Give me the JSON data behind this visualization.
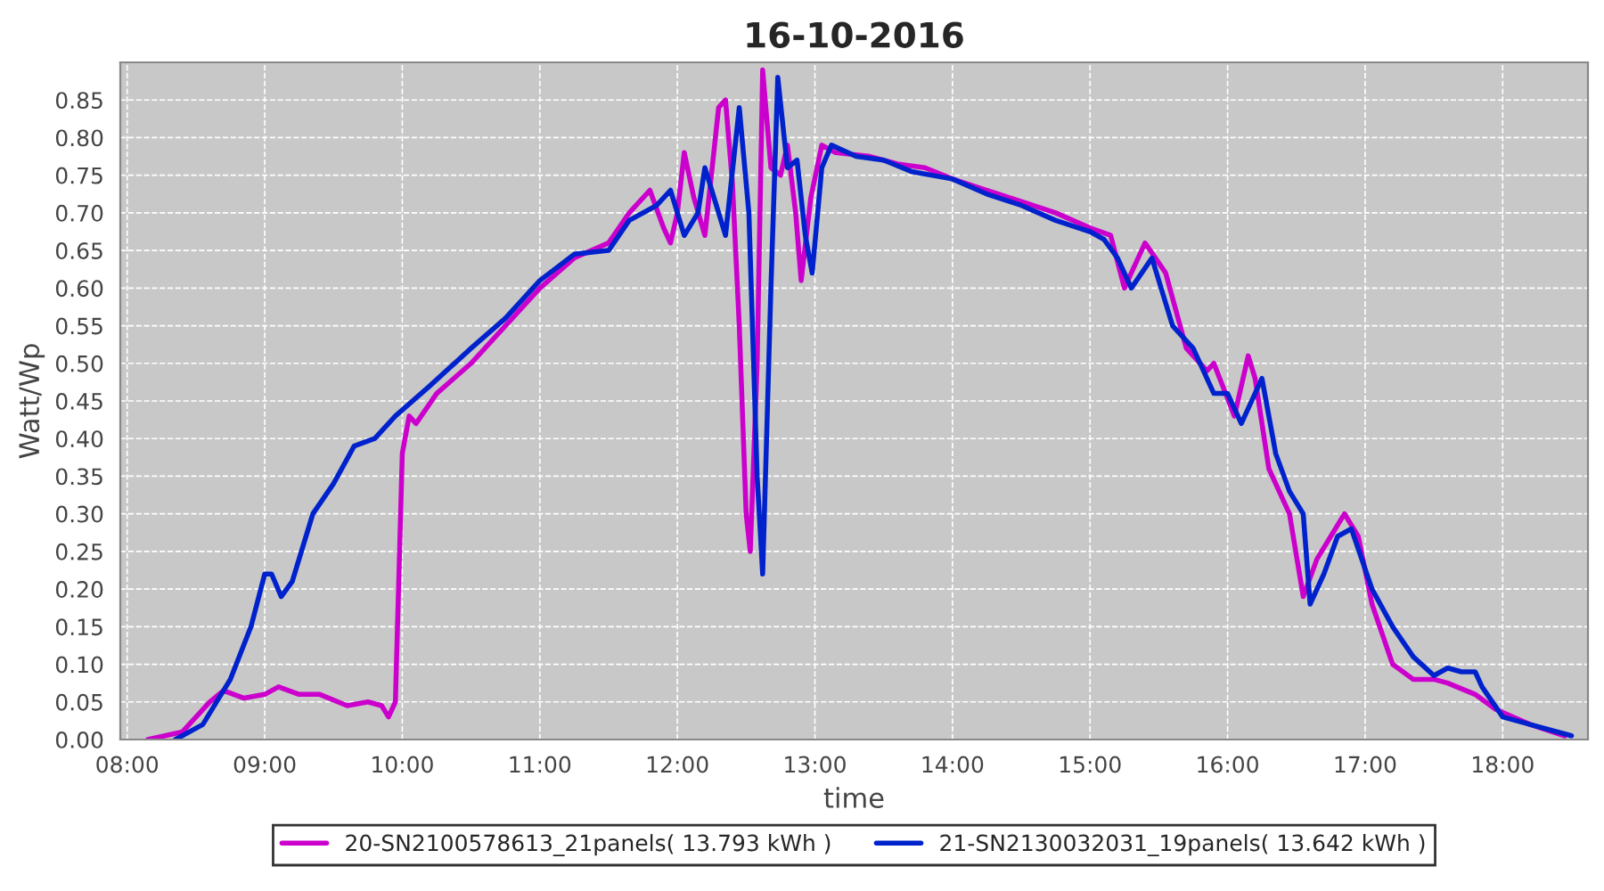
{
  "chart_data": {
    "type": "line",
    "title": "16-10-2016",
    "xlabel": "time",
    "ylabel": "Watt/Wp",
    "xlim": [
      7.95,
      18.62
    ],
    "xticks": [
      {
        "value": 8,
        "label": "08:00"
      },
      {
        "value": 9,
        "label": "09:00"
      },
      {
        "value": 10,
        "label": "10:00"
      },
      {
        "value": 11,
        "label": "11:00"
      },
      {
        "value": 12,
        "label": "12:00"
      },
      {
        "value": 13,
        "label": "13:00"
      },
      {
        "value": 14,
        "label": "14:00"
      },
      {
        "value": 15,
        "label": "15:00"
      },
      {
        "value": 16,
        "label": "16:00"
      },
      {
        "value": 17,
        "label": "17:00"
      },
      {
        "value": 18,
        "label": "18:00"
      }
    ],
    "ylim": [
      0,
      0.9
    ],
    "yticks": [
      {
        "value": 0,
        "label": "0.00"
      },
      {
        "value": 0.05,
        "label": "0.05"
      },
      {
        "value": 0.1,
        "label": "0.10"
      },
      {
        "value": 0.15,
        "label": "0.15"
      },
      {
        "value": 0.2,
        "label": "0.20"
      },
      {
        "value": 0.25,
        "label": "0.25"
      },
      {
        "value": 0.3,
        "label": "0.30"
      },
      {
        "value": 0.35,
        "label": "0.35"
      },
      {
        "value": 0.4,
        "label": "0.40"
      },
      {
        "value": 0.45,
        "label": "0.45"
      },
      {
        "value": 0.5,
        "label": "0.50"
      },
      {
        "value": 0.55,
        "label": "0.55"
      },
      {
        "value": 0.6,
        "label": "0.60"
      },
      {
        "value": 0.65,
        "label": "0.65"
      },
      {
        "value": 0.7,
        "label": "0.70"
      },
      {
        "value": 0.75,
        "label": "0.75"
      },
      {
        "value": 0.8,
        "label": "0.80"
      },
      {
        "value": 0.85,
        "label": "0.85"
      }
    ],
    "grid": true,
    "legend": "bottom",
    "marker": "none",
    "line_style": "solid",
    "series": [
      {
        "name": "20-SN2100578613_21panels( 13.793 kWh )",
        "color": "#cc00cc",
        "x": [
          8.15,
          8.4,
          8.6,
          8.7,
          8.85,
          9.0,
          9.1,
          9.25,
          9.4,
          9.6,
          9.75,
          9.85,
          9.9,
          9.95,
          10.0,
          10.05,
          10.1,
          10.25,
          10.5,
          10.75,
          11.0,
          11.25,
          11.5,
          11.65,
          11.8,
          11.9,
          11.95,
          12.0,
          12.05,
          12.12,
          12.2,
          12.3,
          12.35,
          12.4,
          12.45,
          12.5,
          12.53,
          12.58,
          12.62,
          12.68,
          12.75,
          12.8,
          12.86,
          12.9,
          12.97,
          13.05,
          13.15,
          13.4,
          13.6,
          13.8,
          14.0,
          14.25,
          14.5,
          14.75,
          15.0,
          15.15,
          15.25,
          15.4,
          15.55,
          15.7,
          15.85,
          15.9,
          16.05,
          16.15,
          16.2,
          16.3,
          16.45,
          16.55,
          16.65,
          16.75,
          16.85,
          16.95,
          17.05,
          17.2,
          17.35,
          17.5,
          17.6,
          17.8,
          17.95,
          18.2,
          18.45
        ],
        "values": [
          0.0,
          0.01,
          0.05,
          0.065,
          0.055,
          0.06,
          0.07,
          0.06,
          0.06,
          0.045,
          0.05,
          0.045,
          0.03,
          0.05,
          0.38,
          0.43,
          0.42,
          0.46,
          0.5,
          0.55,
          0.6,
          0.64,
          0.66,
          0.7,
          0.73,
          0.68,
          0.66,
          0.7,
          0.78,
          0.72,
          0.67,
          0.84,
          0.85,
          0.74,
          0.55,
          0.3,
          0.25,
          0.5,
          0.89,
          0.76,
          0.75,
          0.79,
          0.7,
          0.61,
          0.72,
          0.79,
          0.78,
          0.775,
          0.765,
          0.76,
          0.745,
          0.73,
          0.715,
          0.7,
          0.68,
          0.67,
          0.6,
          0.66,
          0.62,
          0.52,
          0.49,
          0.5,
          0.43,
          0.51,
          0.48,
          0.36,
          0.3,
          0.19,
          0.24,
          0.27,
          0.3,
          0.27,
          0.18,
          0.1,
          0.08,
          0.08,
          0.075,
          0.06,
          0.04,
          0.02,
          0.005
        ]
      },
      {
        "name": "21-SN2130032031_19panels( 13.642 kWh )",
        "color": "#0022cc",
        "x": [
          8.35,
          8.55,
          8.75,
          8.9,
          9.0,
          9.05,
          9.12,
          9.2,
          9.35,
          9.5,
          9.65,
          9.8,
          9.95,
          10.2,
          10.5,
          10.75,
          11.0,
          11.25,
          11.5,
          11.65,
          11.85,
          11.95,
          12.05,
          12.15,
          12.2,
          12.3,
          12.35,
          12.45,
          12.52,
          12.58,
          12.62,
          12.68,
          12.73,
          12.8,
          12.87,
          12.93,
          12.98,
          13.05,
          13.12,
          13.3,
          13.5,
          13.7,
          14.0,
          14.25,
          14.5,
          14.75,
          15.0,
          15.1,
          15.2,
          15.3,
          15.45,
          15.6,
          15.75,
          15.9,
          16.0,
          16.1,
          16.25,
          16.35,
          16.45,
          16.55,
          16.6,
          16.7,
          16.8,
          16.9,
          17.05,
          17.2,
          17.35,
          17.5,
          17.6,
          17.7,
          17.8,
          17.85,
          18.0,
          18.2,
          18.5
        ],
        "values": [
          0.0,
          0.02,
          0.08,
          0.15,
          0.22,
          0.22,
          0.19,
          0.21,
          0.3,
          0.34,
          0.39,
          0.4,
          0.43,
          0.47,
          0.52,
          0.56,
          0.61,
          0.645,
          0.65,
          0.69,
          0.71,
          0.73,
          0.67,
          0.7,
          0.76,
          0.7,
          0.67,
          0.84,
          0.7,
          0.35,
          0.22,
          0.6,
          0.88,
          0.76,
          0.77,
          0.67,
          0.62,
          0.76,
          0.79,
          0.775,
          0.77,
          0.755,
          0.745,
          0.725,
          0.71,
          0.69,
          0.675,
          0.665,
          0.64,
          0.6,
          0.64,
          0.55,
          0.52,
          0.46,
          0.46,
          0.42,
          0.48,
          0.38,
          0.33,
          0.3,
          0.18,
          0.22,
          0.27,
          0.28,
          0.2,
          0.15,
          0.11,
          0.085,
          0.095,
          0.09,
          0.09,
          0.07,
          0.03,
          0.02,
          0.005
        ]
      }
    ]
  }
}
